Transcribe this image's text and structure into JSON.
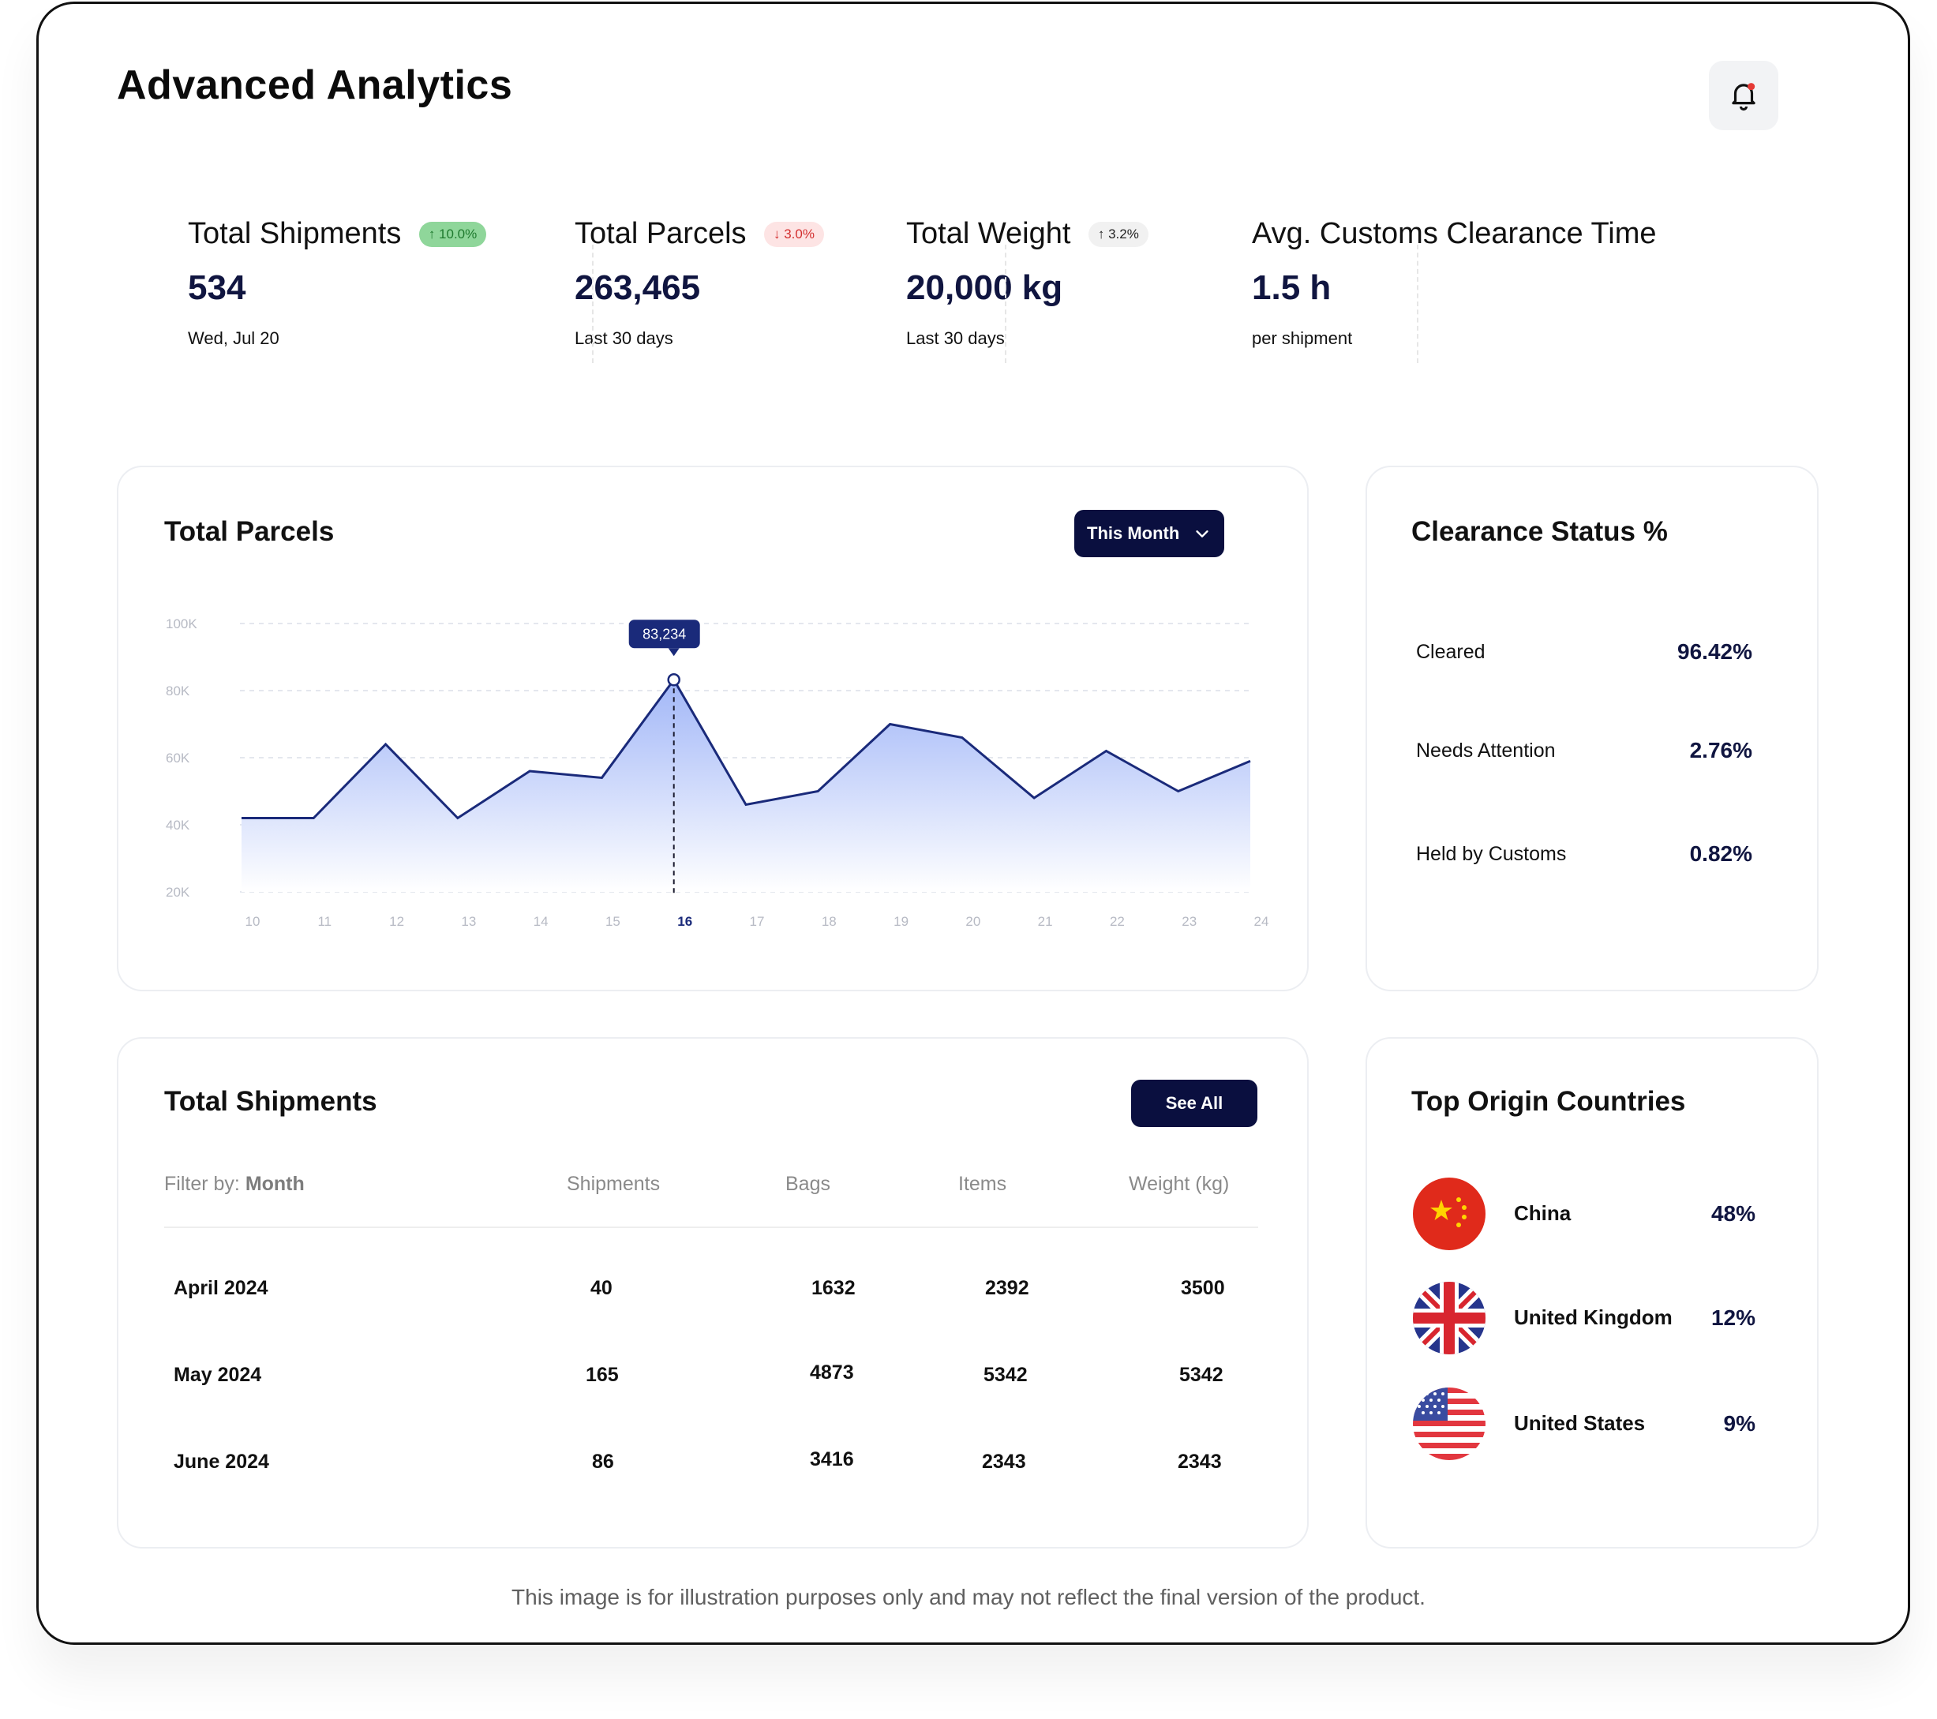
{
  "page": {
    "title": "Advanced Analytics",
    "disclaimer": "This image is for illustration purposes only and may not reflect the final version of the product."
  },
  "notification": {
    "icon": "bell-icon",
    "has_unread": true
  },
  "kpis": [
    {
      "label": "Total Shipments",
      "badge": "↑ 10.0%",
      "badge_tone": "up-green",
      "value": "534",
      "sub": "Wed, Jul 20"
    },
    {
      "label": "Total Parcels",
      "badge": "↓ 3.0%",
      "badge_tone": "down-red",
      "value": "263,465",
      "sub": "Last 30 days"
    },
    {
      "label": "Total Weight",
      "badge": "↑ 3.2%",
      "badge_tone": "up-gray",
      "value": "20,000 kg",
      "sub": "Last 30 days"
    },
    {
      "label": "Avg. Customs Clearance Time",
      "badge": "",
      "value": "1.5 h",
      "sub": "per shipment"
    }
  ],
  "parcels_card": {
    "title": "Total Parcels",
    "period_label": "This Month",
    "tooltip": "83,234",
    "highlight_index": 6
  },
  "chart_data": {
    "type": "area",
    "x": [
      "10",
      "11",
      "12",
      "13",
      "14",
      "15",
      "16",
      "17",
      "18",
      "19",
      "20",
      "21",
      "22",
      "23",
      "24"
    ],
    "y": [
      42000,
      42000,
      64000,
      42000,
      56000,
      54000,
      83234,
      46000,
      50000,
      70000,
      66000,
      48000,
      62000,
      50000,
      59000
    ],
    "yticks": [
      "100K",
      "80K",
      "60K",
      "40K",
      "20K"
    ],
    "ylim": [
      20000,
      100000
    ],
    "grid": true,
    "colors": {
      "line": "#1a2a7a",
      "fill_top": "#9db3f7",
      "fill_bottom": "#ffffff",
      "tooltip_bg": "#1a2a7a"
    }
  },
  "clearance": {
    "title": "Clearance Status %",
    "rows": [
      {
        "name": "Cleared",
        "pct": "96.42%"
      },
      {
        "name": "Needs Attention",
        "pct": "2.76%"
      },
      {
        "name": "Held by Customs",
        "pct": "0.82%"
      }
    ]
  },
  "shipments": {
    "title": "Total Shipments",
    "see_all": "See All",
    "filter_label": "Filter by:",
    "filter_value": "Month",
    "columns": [
      "Shipments",
      "Bags",
      "Items",
      "Weight (kg)"
    ],
    "rows": [
      {
        "month": "April 2024",
        "shipments": "40",
        "bags": "1632",
        "items": "2392",
        "weight": "3500"
      },
      {
        "month": "May 2024",
        "shipments": "165",
        "bags": "4873",
        "items": "5342",
        "weight": "5342"
      },
      {
        "month": "June 2024",
        "shipments": "86",
        "bags": "3416",
        "items": "2343",
        "weight": "2343"
      }
    ]
  },
  "countries": {
    "title": "Top Origin Countries",
    "rows": [
      {
        "name": "China",
        "pct": "48%",
        "flag": "china-flag-icon"
      },
      {
        "name": "United Kingdom",
        "pct": "12%",
        "flag": "uk-flag-icon"
      },
      {
        "name": "United States",
        "pct": "9%",
        "flag": "us-flag-icon"
      }
    ]
  }
}
